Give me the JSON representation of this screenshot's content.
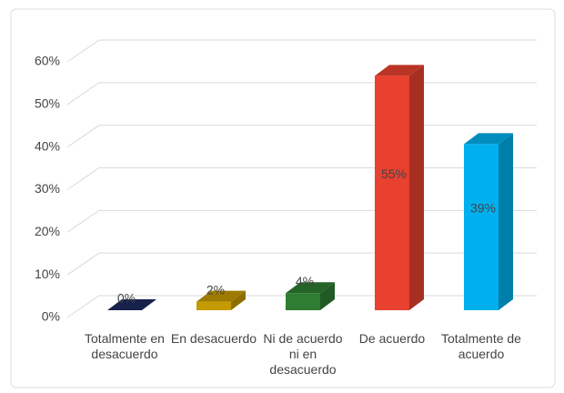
{
  "chart_data": {
    "type": "bar3d",
    "categories": [
      "Totalmente en desacuerdo",
      "En desacuerdo",
      "Ni de acuerdo ni en desacuerdo",
      "De acuerdo",
      "Totalmente de acuerdo"
    ],
    "values": [
      0,
      2,
      4,
      55,
      39
    ],
    "value_labels": [
      "0%",
      "2%",
      "4%",
      "55%",
      "39%"
    ],
    "colors": [
      "#1c2a5e",
      "#c49a00",
      "#2e7d32",
      "#e8412f",
      "#00b0ee"
    ],
    "ylim": [
      0,
      60
    ],
    "yticks": [
      {
        "value": 0,
        "label": "0%"
      },
      {
        "value": 10,
        "label": "10%"
      },
      {
        "value": 20,
        "label": "20%"
      },
      {
        "value": 30,
        "label": "30%"
      },
      {
        "value": 40,
        "label": "40%"
      },
      {
        "value": 50,
        "label": "50%"
      },
      {
        "value": 60,
        "label": "60%"
      }
    ],
    "grid": true
  }
}
